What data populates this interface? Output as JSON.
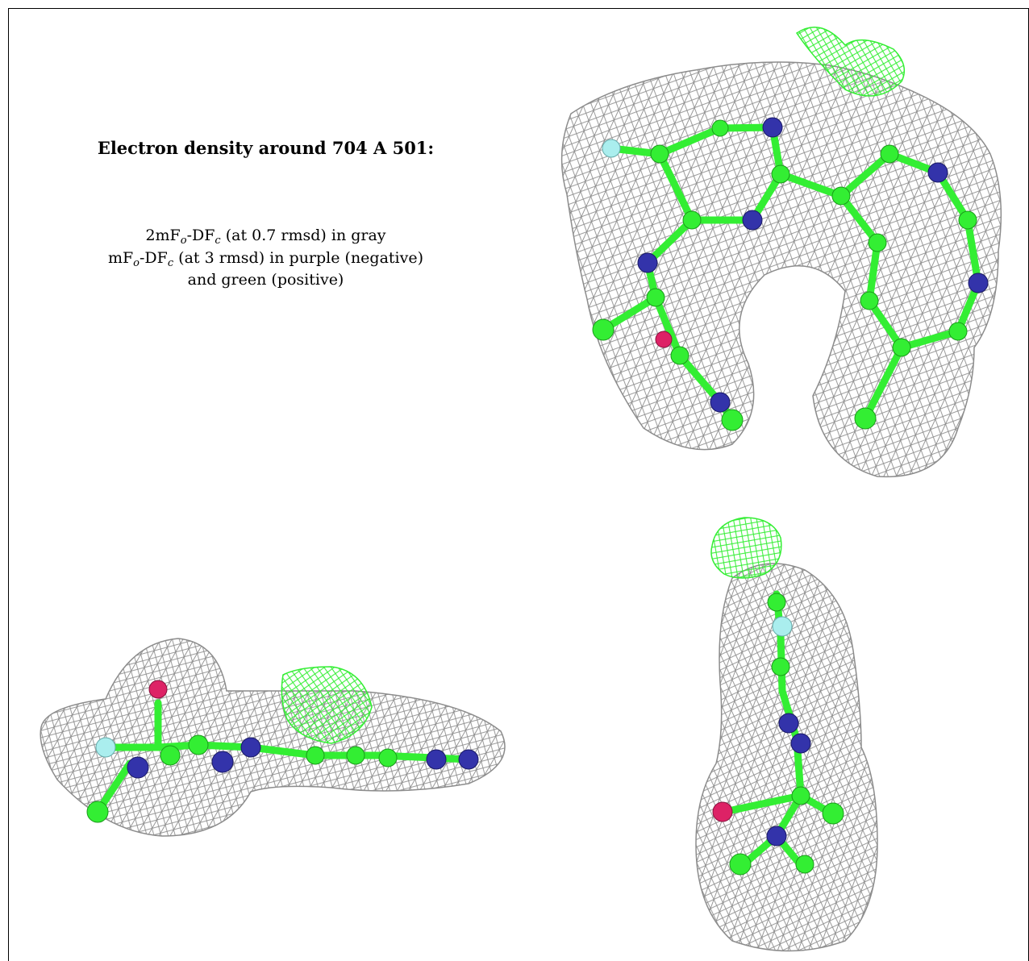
{
  "caption": {
    "title": "Electron density around 704 A 501:",
    "line1": {
      "prefix": "2mF",
      "sub1": "o",
      "mid": "-DF",
      "sub2": "c",
      "suffix": " (at 0.7 rmsd) in gray"
    },
    "line2": {
      "prefix": "mF",
      "sub1": "o",
      "mid": "-DF",
      "sub2": "c",
      "suffix": " (at 3 rmsd) in purple (negative)"
    },
    "line3": "and green (positive)"
  },
  "colors": {
    "mesh_gray": "#8c8c8c",
    "mesh_green": "#33ee33",
    "carbon": "#33ee33",
    "nitrogen": "#3333aa",
    "oxygen": "#dd2266",
    "fluorine": "#aaeeee",
    "border": "#000000"
  },
  "panels": [
    {
      "view": "top-down view of ligand in density"
    },
    {
      "view": "side view of ligand in density"
    },
    {
      "view": "end-on view of ligand in density"
    }
  ]
}
